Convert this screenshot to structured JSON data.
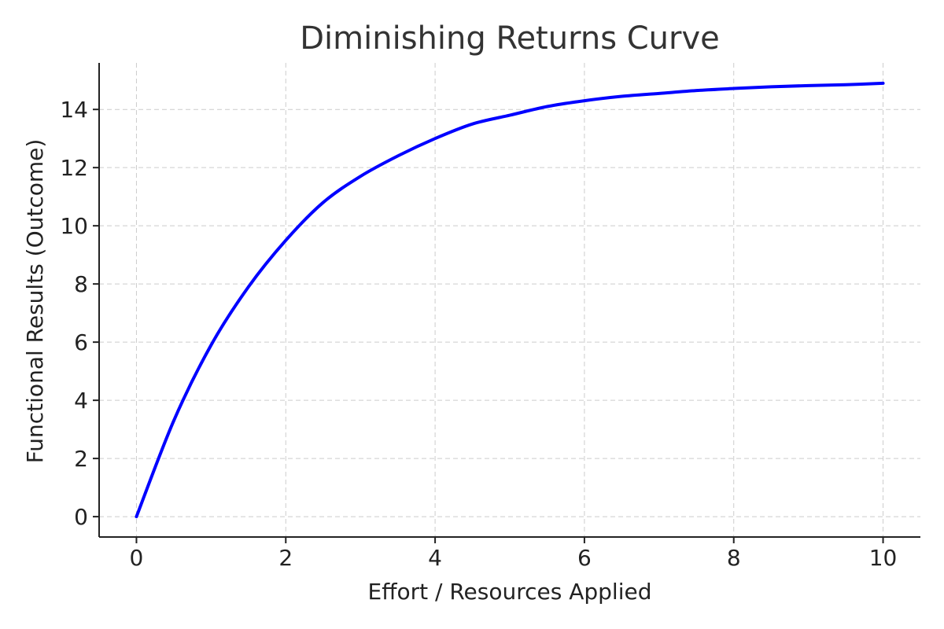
{
  "chart_data": {
    "type": "line",
    "title": "Diminishing Returns Curve",
    "xlabel": "Effort / Resources Applied",
    "ylabel": "Functional Results (Outcome)",
    "xlim": [
      -0.5,
      10.5
    ],
    "ylim": [
      -0.7,
      15.6
    ],
    "xticks": [
      0,
      2,
      4,
      6,
      8,
      10
    ],
    "yticks": [
      0,
      2,
      4,
      6,
      8,
      10,
      12,
      14
    ],
    "grid": true,
    "legend": "none",
    "series": [
      {
        "color": "#0000ff",
        "x": [
          0,
          0.5,
          1,
          1.5,
          2,
          2.5,
          3,
          3.5,
          4,
          4.5,
          5,
          5.5,
          6,
          6.5,
          7,
          7.5,
          8,
          8.5,
          9,
          9.5,
          10
        ],
        "y": [
          0,
          3.3,
          5.9,
          7.9,
          9.5,
          10.8,
          11.7,
          12.4,
          13.0,
          13.5,
          13.8,
          14.1,
          14.3,
          14.45,
          14.55,
          14.65,
          14.72,
          14.78,
          14.82,
          14.85,
          14.9
        ]
      }
    ]
  }
}
